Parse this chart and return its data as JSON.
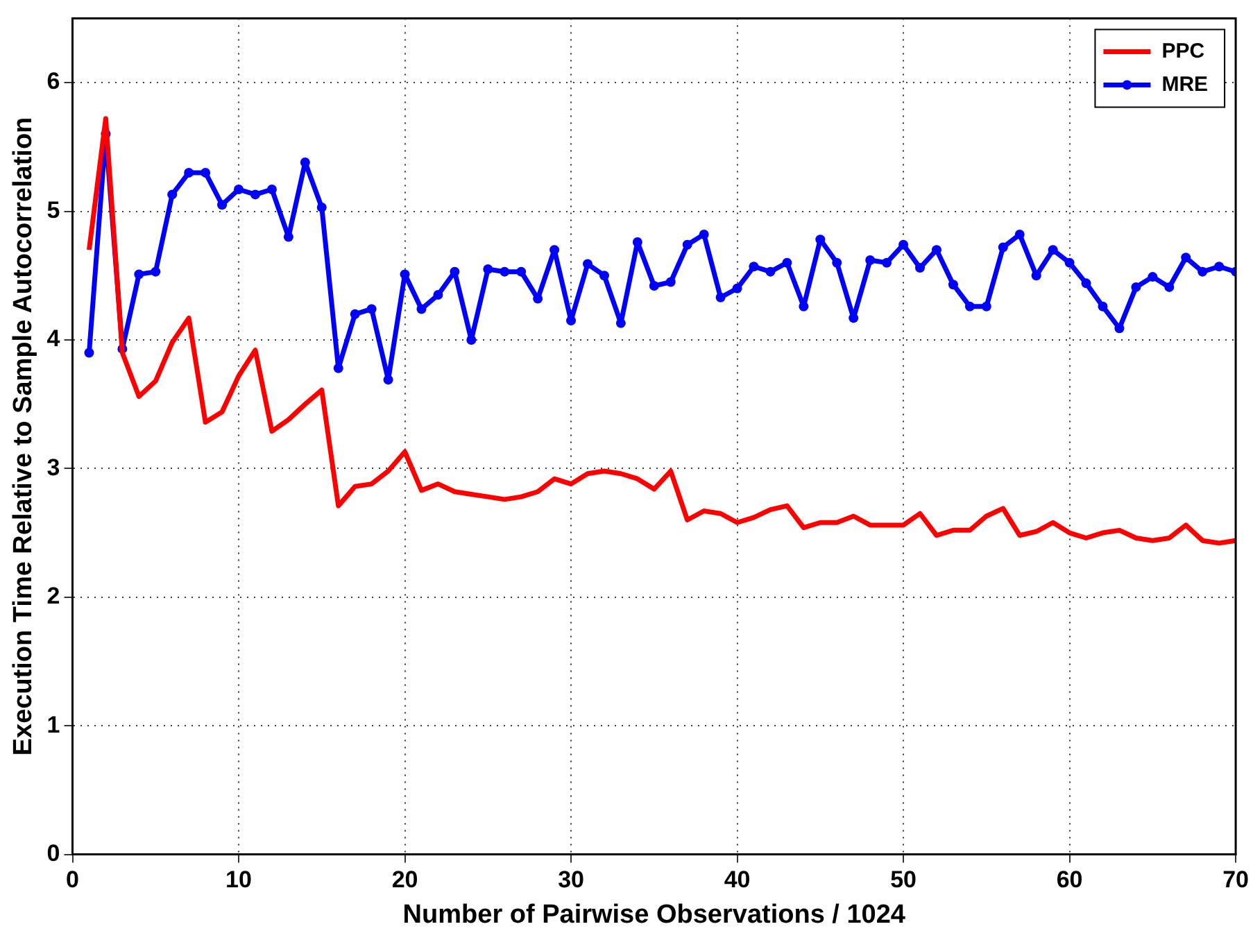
{
  "chart_data": {
    "type": "line",
    "xlabel": "Number of Pairwise Observations / 1024",
    "ylabel": "Execution Time Relative to Sample Autocorrelation",
    "x": [
      1,
      2,
      3,
      4,
      5,
      6,
      7,
      8,
      9,
      10,
      11,
      12,
      13,
      14,
      15,
      16,
      17,
      18,
      19,
      20,
      21,
      22,
      23,
      24,
      25,
      26,
      27,
      28,
      29,
      30,
      31,
      32,
      33,
      34,
      35,
      36,
      37,
      38,
      39,
      40,
      41,
      42,
      43,
      44,
      45,
      46,
      47,
      48,
      49,
      50,
      51,
      52,
      53,
      54,
      55,
      56,
      57,
      58,
      59,
      60,
      61,
      62,
      63,
      64,
      65,
      66,
      67,
      68,
      69,
      70
    ],
    "series": [
      {
        "name": "PPC",
        "color": "#ff0000",
        "marker": "none",
        "values": [
          4.7,
          5.72,
          3.9,
          3.56,
          3.68,
          3.98,
          4.17,
          3.36,
          3.44,
          3.72,
          3.92,
          3.29,
          3.38,
          3.5,
          3.61,
          2.71,
          2.86,
          2.88,
          2.98,
          3.13,
          2.83,
          2.88,
          2.82,
          2.8,
          2.78,
          2.76,
          2.78,
          2.82,
          2.92,
          2.88,
          2.96,
          2.98,
          2.96,
          2.92,
          2.84,
          2.98,
          2.6,
          2.67,
          2.65,
          2.58,
          2.62,
          2.68,
          2.71,
          2.54,
          2.58,
          2.58,
          2.63,
          2.56,
          2.56,
          2.56,
          2.65,
          2.48,
          2.52,
          2.52,
          2.63,
          2.69,
          2.48,
          2.51,
          2.58,
          2.5,
          2.46,
          2.5,
          2.52,
          2.46,
          2.44,
          2.46,
          2.56,
          2.44,
          2.42,
          2.44
        ]
      },
      {
        "name": "MRE",
        "color": "#0000ff",
        "marker": "circle",
        "values": [
          3.9,
          5.6,
          3.93,
          4.51,
          4.53,
          5.13,
          5.3,
          5.3,
          5.05,
          5.17,
          5.13,
          5.17,
          4.8,
          5.38,
          5.03,
          3.78,
          4.2,
          4.24,
          3.69,
          4.51,
          4.24,
          4.35,
          4.53,
          4.0,
          4.55,
          4.53,
          4.53,
          4.32,
          4.7,
          4.15,
          4.59,
          4.5,
          4.13,
          4.76,
          4.42,
          4.45,
          4.74,
          4.82,
          4.33,
          4.4,
          4.57,
          4.53,
          4.6,
          4.26,
          4.78,
          4.6,
          4.17,
          4.62,
          4.6,
          4.74,
          4.56,
          4.7,
          4.43,
          4.26,
          4.26,
          4.72,
          4.82,
          4.5,
          4.7,
          4.6,
          4.44,
          4.26,
          4.09,
          4.41,
          4.49,
          4.41,
          4.64,
          4.53,
          4.57,
          4.53
        ]
      }
    ],
    "xlim": [
      0,
      70
    ],
    "xticks": [
      0,
      10,
      20,
      30,
      40,
      50,
      60,
      70
    ],
    "ylim": [
      0,
      6.5
    ],
    "yticks": [
      0,
      1,
      2,
      3,
      4,
      5,
      6
    ],
    "grid": true,
    "legend": "top right",
    "line_style": "solid"
  }
}
